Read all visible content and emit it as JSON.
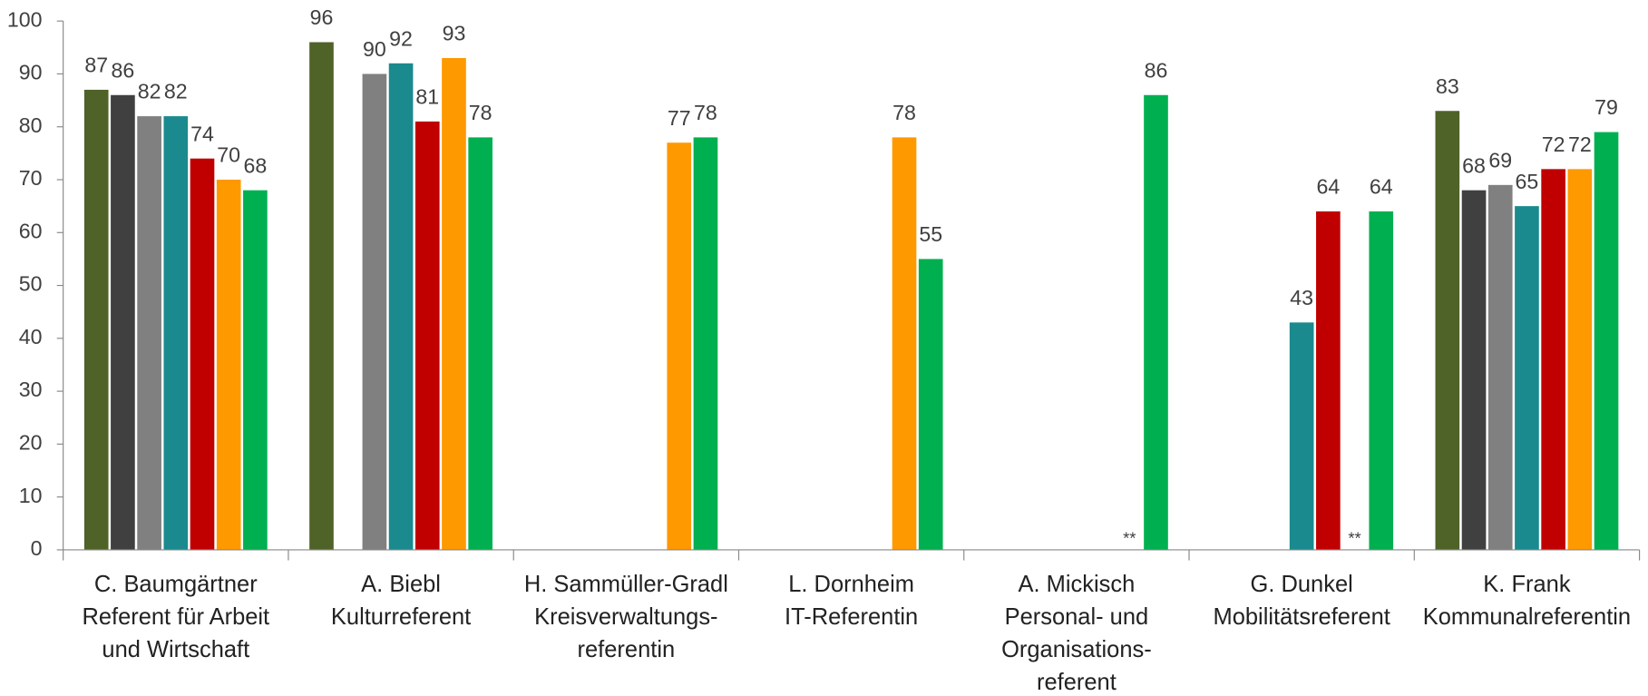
{
  "chart_data": {
    "type": "bar",
    "categories": [
      [
        "C. Baumgärtner",
        "Referent für Arbeit",
        "und Wirtschaft"
      ],
      [
        "A. Biebl",
        "Kulturreferent"
      ],
      [
        "H. Sammüller-Gradl",
        "Kreisverwaltungs-",
        "referentin"
      ],
      [
        "L. Dornheim",
        "IT-Referentin"
      ],
      [
        "A. Mickisch",
        "Personal- und",
        "Organisations-",
        "referent"
      ],
      [
        "G. Dunkel",
        "Mobilitätsreferent"
      ],
      [
        "K. Frank",
        "Kommunalreferentin"
      ]
    ],
    "series": [
      {
        "color": "#4f6228",
        "values": [
          87,
          96,
          null,
          null,
          null,
          null,
          83
        ]
      },
      {
        "color": "#404040",
        "values": [
          86,
          null,
          null,
          null,
          null,
          null,
          68
        ]
      },
      {
        "color": "#808080",
        "values": [
          82,
          90,
          null,
          null,
          null,
          null,
          69
        ]
      },
      {
        "color": "#1a8a8e",
        "values": [
          82,
          92,
          null,
          null,
          null,
          43,
          65
        ]
      },
      {
        "color": "#c00000",
        "values": [
          74,
          81,
          null,
          null,
          null,
          64,
          72
        ]
      },
      {
        "color": "#ff9900",
        "values": [
          70,
          93,
          77,
          78,
          null,
          null,
          72
        ]
      },
      {
        "color": "#00b050",
        "values": [
          68,
          78,
          78,
          55,
          86,
          64,
          79
        ]
      }
    ],
    "annotations": [
      {
        "text": "**",
        "category": 4,
        "series": 5
      },
      {
        "text": "**",
        "category": 5,
        "series": 5
      }
    ],
    "ylim": [
      0,
      100
    ],
    "yticks": [
      0,
      10,
      20,
      30,
      40,
      50,
      60,
      70,
      80,
      90,
      100
    ],
    "grid": false
  }
}
